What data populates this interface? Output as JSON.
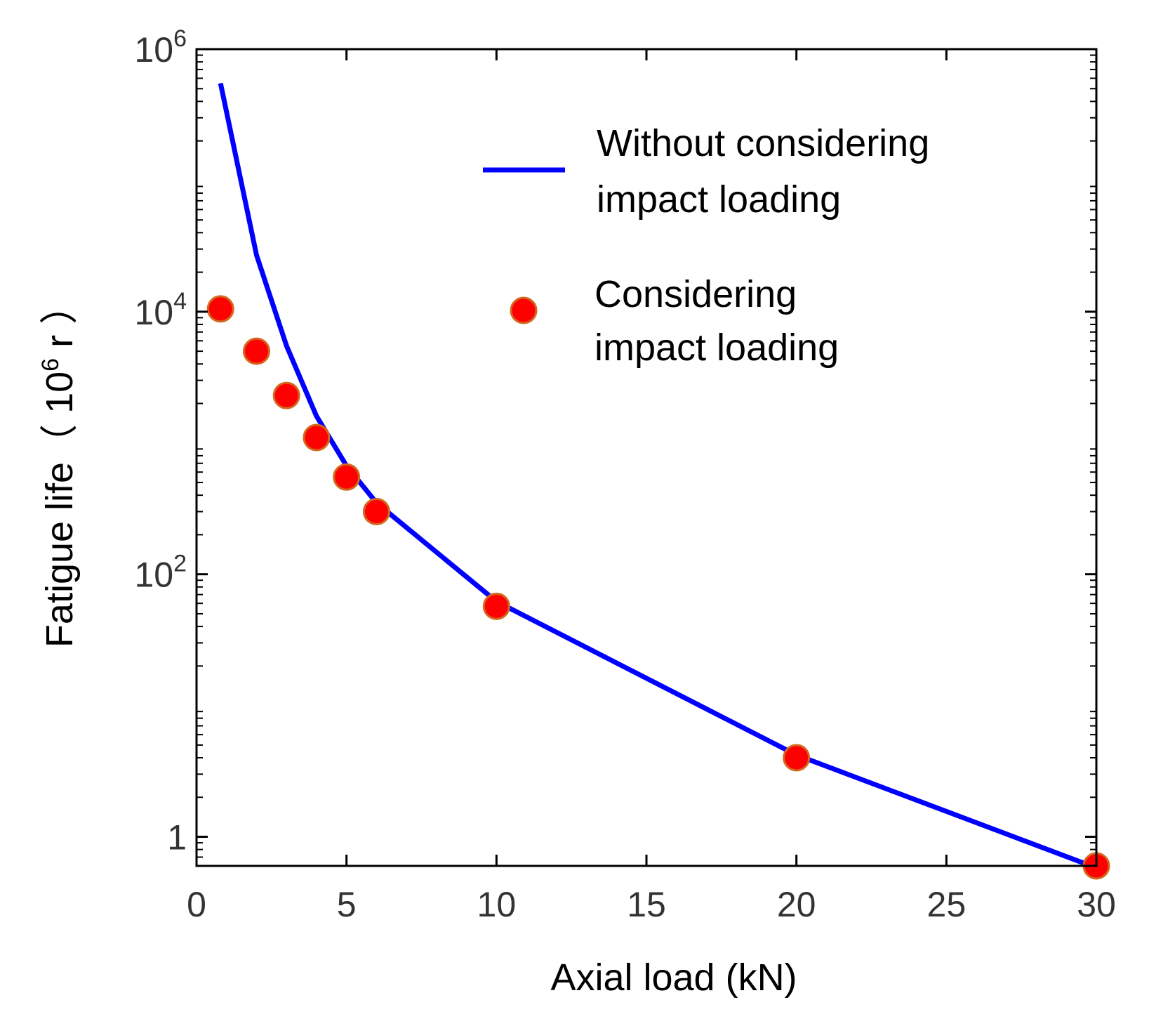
{
  "chart_data": {
    "type": "line",
    "xlabel": "Axial load (kN)",
    "ylabel_main": "Fatigue life",
    "ylabel_unit_open": "（ 10",
    "ylabel_unit_exp": "6",
    "ylabel_unit_close": " r ）",
    "xlim": [
      0,
      30
    ],
    "ylim": [
      0.6,
      1000000
    ],
    "y_scale": "log",
    "x_ticks": [
      0,
      5,
      10,
      15,
      20,
      25,
      30
    ],
    "x_tick_labels": [
      "0",
      "5",
      "10",
      "15",
      "20",
      "25",
      "30"
    ],
    "y_ticks": [
      {
        "value": 1,
        "base": "1",
        "exp": ""
      },
      {
        "value": 100,
        "base": "10",
        "exp": "2"
      },
      {
        "value": 10000,
        "base": "10",
        "exp": "4"
      },
      {
        "value": 1000000,
        "base": "10",
        "exp": "6"
      }
    ],
    "legend_position": "top-right",
    "series": [
      {
        "name": "Without considering impact loading",
        "name_lines": [
          "Without considering",
          "impact loading"
        ],
        "kind": "line",
        "color": "#0000ff",
        "x": [
          0.8,
          2,
          3,
          4,
          5,
          6,
          10,
          20,
          30
        ],
        "y": [
          550000,
          27000,
          5500,
          1600,
          670,
          350,
          62,
          4.2,
          0.58
        ]
      },
      {
        "name": "Considering impact loading",
        "name_lines": [
          "Considering",
          "impact loading"
        ],
        "kind": "scatter",
        "color": "#ff0000",
        "edge_color": "#d2691e",
        "x": [
          0.8,
          2,
          3,
          4,
          5,
          6,
          10,
          20,
          30
        ],
        "y": [
          10500,
          5000,
          2300,
          1100,
          550,
          300,
          57,
          4.0,
          0.6
        ]
      }
    ]
  }
}
